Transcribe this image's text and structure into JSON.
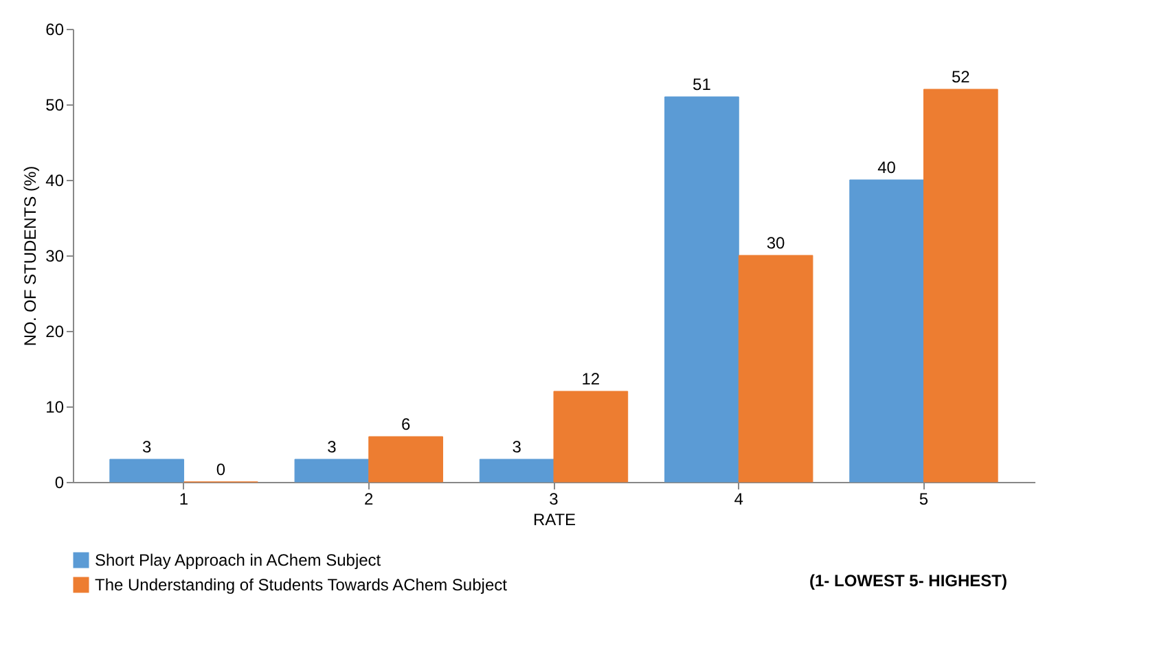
{
  "chart_data": {
    "type": "bar",
    "xlabel": "RATE",
    "ylabel": "NO. OF STUDENTS (%)",
    "categories": [
      "1",
      "2",
      "3",
      "4",
      "5"
    ],
    "series": [
      {
        "name": "Short Play Approach in AChem Subject",
        "color": "#5b9bd5",
        "values": [
          3,
          3,
          3,
          51,
          40
        ]
      },
      {
        "name": "The Understanding of Students Towards AChem Subject",
        "color": "#ed7d31",
        "values": [
          0,
          6,
          12,
          30,
          52
        ]
      }
    ],
    "ylim": [
      0,
      60
    ],
    "yticks": [
      0,
      10,
      20,
      30,
      40,
      50,
      60
    ],
    "grid": false,
    "legend": "bottom left",
    "data_labels": true,
    "annotations": [
      "(1- LOWEST 5- HIGHEST)"
    ]
  }
}
